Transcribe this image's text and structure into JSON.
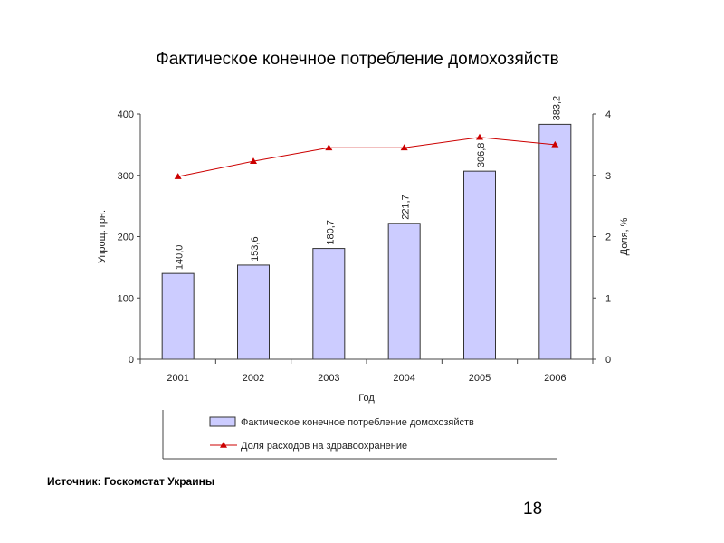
{
  "slide": {
    "title": "Фактическое конечное потребление домохозяйств",
    "source": "Источник: Госкомстат Украины",
    "page_number": "18"
  },
  "chart_data": {
    "type": "bar",
    "categories": [
      "2001",
      "2002",
      "2003",
      "2004",
      "2005",
      "2006"
    ],
    "series": [
      {
        "name": "Фактическое конечное потребление домохозяйств",
        "type": "bar",
        "axis": "left",
        "values": [
          140.0,
          153.6,
          180.7,
          221.7,
          306.8,
          383.2
        ],
        "data_labels": [
          "140,0",
          "153,6",
          "180,7",
          "221,7",
          "306,8",
          "383,2"
        ],
        "color": "#ccccff"
      },
      {
        "name": "Доля расходов на здравоохранение",
        "type": "line",
        "axis": "right",
        "values": [
          2.98,
          3.23,
          3.45,
          3.45,
          3.62,
          3.5
        ],
        "color": "#cc0000"
      }
    ],
    "xlabel": "Год",
    "ylabel": "Упрощ. грн.",
    "y2label": "Доля, %",
    "ylim": [
      0,
      400
    ],
    "y2lim": [
      0,
      4
    ],
    "yticks": [
      "0",
      "100",
      "200",
      "300",
      "400"
    ],
    "y2ticks": [
      "0",
      "1",
      "2",
      "3",
      "4"
    ],
    "legend_position": "bottom"
  }
}
